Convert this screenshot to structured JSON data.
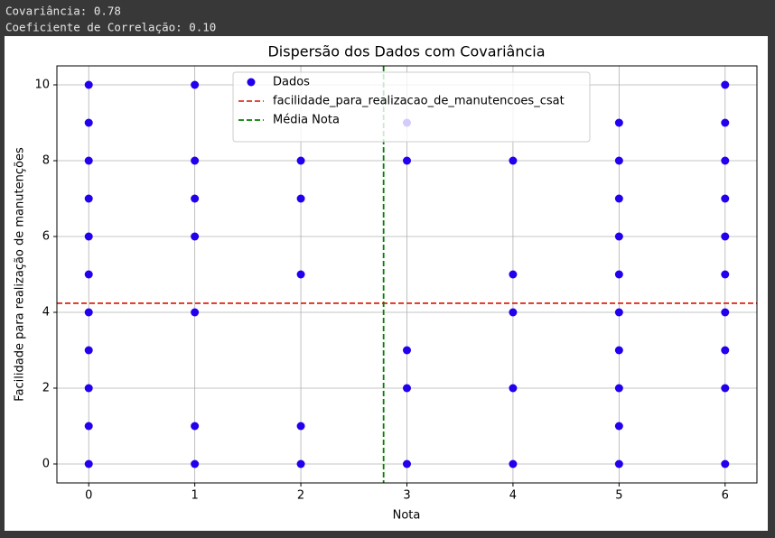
{
  "output_lines": [
    "Covariância: 0.78",
    "Coeficiente de Correlação: 0.10"
  ],
  "chart_data": {
    "type": "scatter",
    "title": "Dispersão dos Dados com Covariância",
    "x_label": "Nota",
    "y_label": "Facilidade para realização de manutenções",
    "series": [
      {
        "name": "Dados",
        "color": "#2200ee",
        "x": [
          0,
          0,
          0,
          0,
          0,
          0,
          0,
          0,
          0,
          0,
          0,
          1,
          1,
          1,
          1,
          1,
          1,
          1,
          2,
          2,
          2,
          2,
          2,
          3,
          3,
          3,
          3,
          3,
          4,
          4,
          4,
          4,
          4,
          5,
          5,
          5,
          5,
          5,
          5,
          5,
          5,
          5,
          5,
          6,
          6,
          6,
          6,
          6,
          6,
          6,
          6,
          6,
          6
        ],
        "values": [
          0,
          1,
          2,
          3,
          4,
          5,
          6,
          7,
          8,
          9,
          10,
          0,
          1,
          4,
          6,
          7,
          8,
          10,
          0,
          1,
          5,
          7,
          8,
          0,
          2,
          3,
          8,
          9,
          0,
          2,
          4,
          5,
          8,
          0,
          1,
          2,
          3,
          4,
          5,
          6,
          7,
          8,
          9,
          0,
          2,
          3,
          4,
          5,
          6,
          7,
          8,
          9,
          10
        ]
      }
    ],
    "reference_lines": [
      {
        "name": "facilidade_para_realizacao_de_manutencoes_csat",
        "color": "#e0301e",
        "axis": "y",
        "value": 4.24
      },
      {
        "name": "Média Nota",
        "color": "#008000",
        "axis": "x",
        "value": 2.78
      }
    ],
    "xlim": [
      -0.3,
      6.3
    ],
    "ylim": [
      -0.5,
      10.5
    ],
    "xticks": [
      0,
      1,
      2,
      3,
      4,
      5,
      6
    ],
    "yticks": [
      0,
      2,
      4,
      6,
      8,
      10
    ],
    "grid": true,
    "legend": "upper center"
  }
}
